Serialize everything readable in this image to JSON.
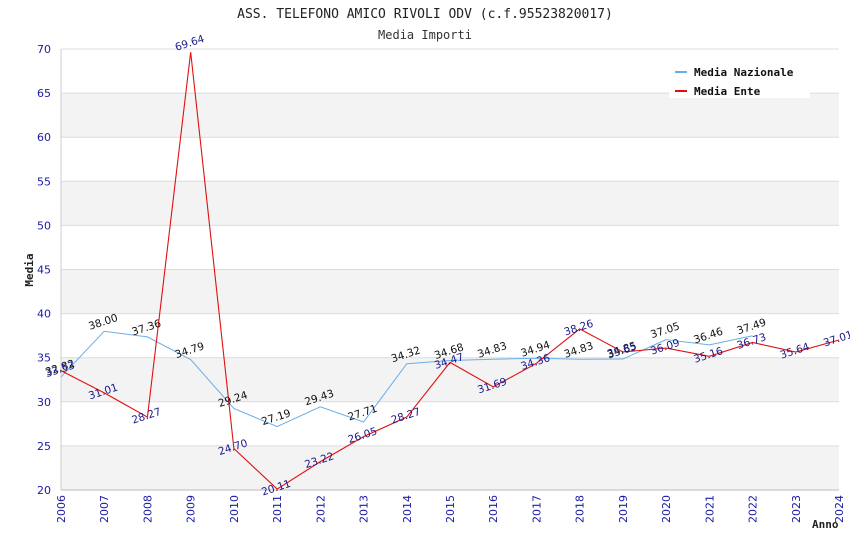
{
  "chart_data": {
    "type": "line",
    "title": "ASS. TELEFONO AMICO RIVOLI ODV (c.f.95523820017)",
    "subtitle": "Media Importi",
    "xlabel": "Anno",
    "ylabel": "Media",
    "ylim": [
      20,
      70
    ],
    "yticks": [
      20,
      25,
      30,
      35,
      40,
      45,
      50,
      55,
      60,
      65,
      70
    ],
    "categories": [
      "2006",
      "2007",
      "2008",
      "2009",
      "2010",
      "2011",
      "2012",
      "2013",
      "2014",
      "2015",
      "2016",
      "2017",
      "2018",
      "2019",
      "2020",
      "2021",
      "2022",
      "2023",
      "2024"
    ],
    "grid": "horizontal, alternating bands",
    "legend_position": "top-right",
    "series": [
      {
        "name": "Media Nazionale",
        "color": "#6aaee8",
        "values": [
          32.82,
          38.0,
          37.36,
          34.79,
          29.24,
          27.19,
          29.43,
          27.71,
          34.32,
          34.68,
          34.83,
          34.94,
          34.83,
          34.85,
          37.05,
          36.46,
          37.49,
          null,
          null
        ],
        "labels": [
          "32.82",
          "38.00",
          "37.36",
          "34.79",
          "29.24",
          "27.19",
          "29.43",
          "27.71",
          "34.32",
          "34.68",
          "34.83",
          "34.94",
          "34.83",
          "34.85",
          "37.05",
          "36.46",
          "37.49",
          "",
          ""
        ]
      },
      {
        "name": "Media Ente",
        "color": "#e01010",
        "values": [
          33.53,
          31.01,
          28.27,
          69.64,
          24.7,
          20.11,
          23.22,
          26.05,
          28.27,
          34.47,
          31.69,
          34.36,
          38.26,
          35.65,
          36.09,
          35.16,
          36.73,
          35.64,
          37.01
        ],
        "labels": [
          "33.53",
          "31.01",
          "28.27",
          "69.64",
          "24.70",
          "20.11",
          "23.22",
          "26.05",
          "28.27",
          "34.47",
          "31.69",
          "34.36",
          "38.26",
          "35.65",
          "36.09",
          "35.16",
          "36.73",
          "35.64",
          "37.01"
        ]
      }
    ]
  }
}
